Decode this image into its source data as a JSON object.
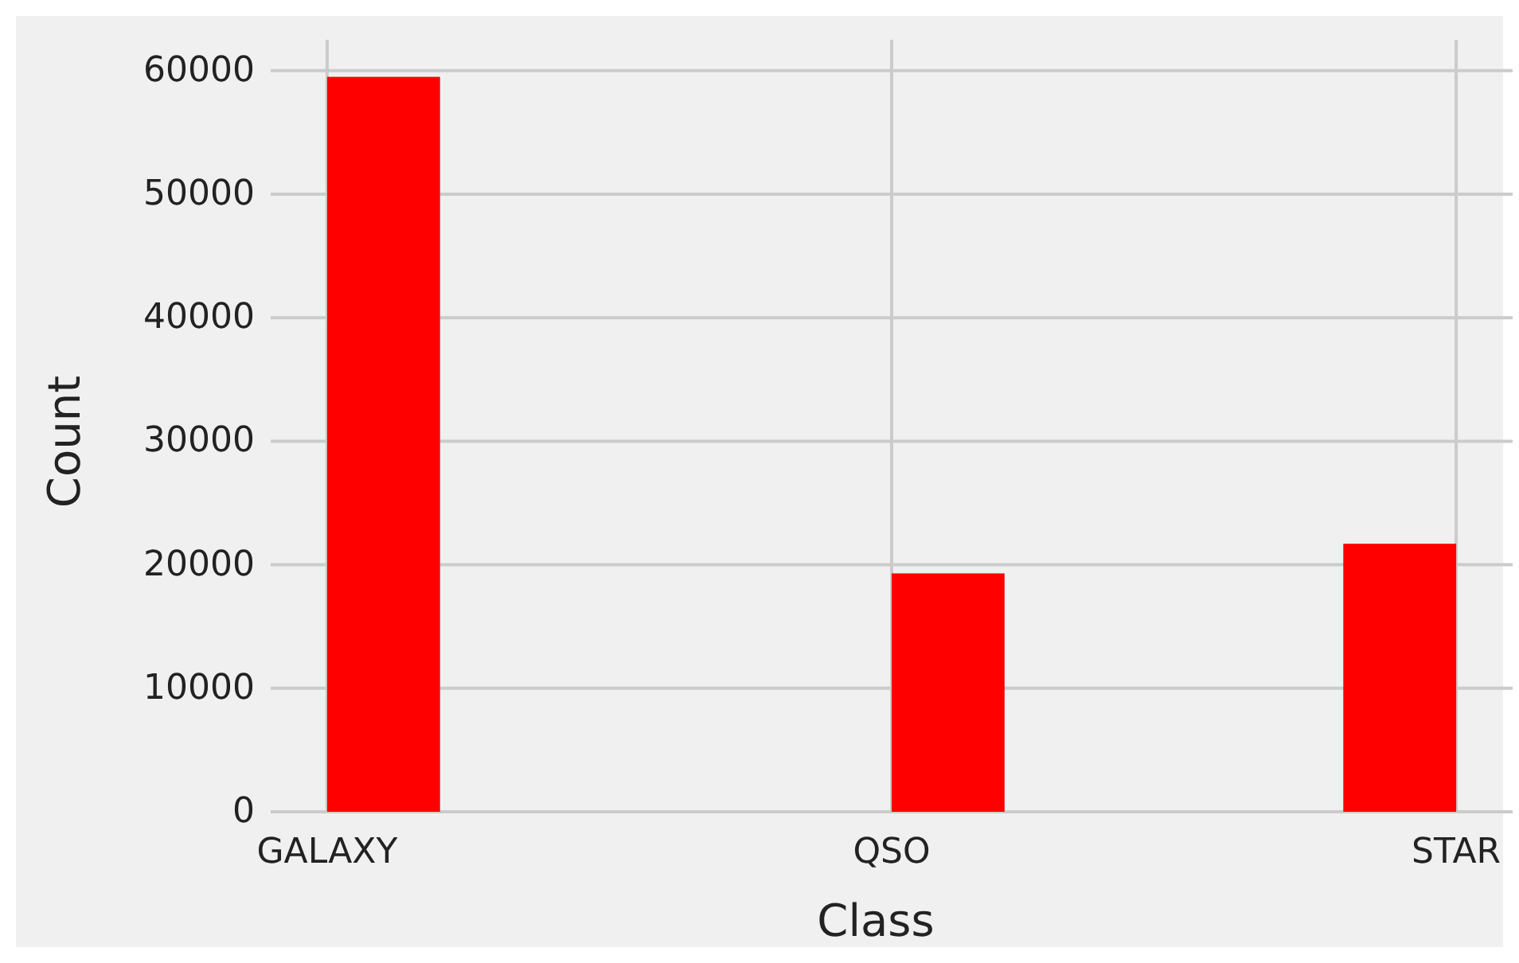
{
  "chart_data": {
    "type": "bar",
    "xlabel": "Class",
    "ylabel": "Count",
    "categories": [
      "GALAXY",
      "QSO",
      "STAR"
    ],
    "values": [
      59500,
      19300,
      21700
    ],
    "color": "#ff0000",
    "ylim": [
      0,
      62500
    ],
    "yticks": [
      0,
      10000,
      20000,
      30000,
      40000,
      50000,
      60000
    ],
    "grid": true
  }
}
